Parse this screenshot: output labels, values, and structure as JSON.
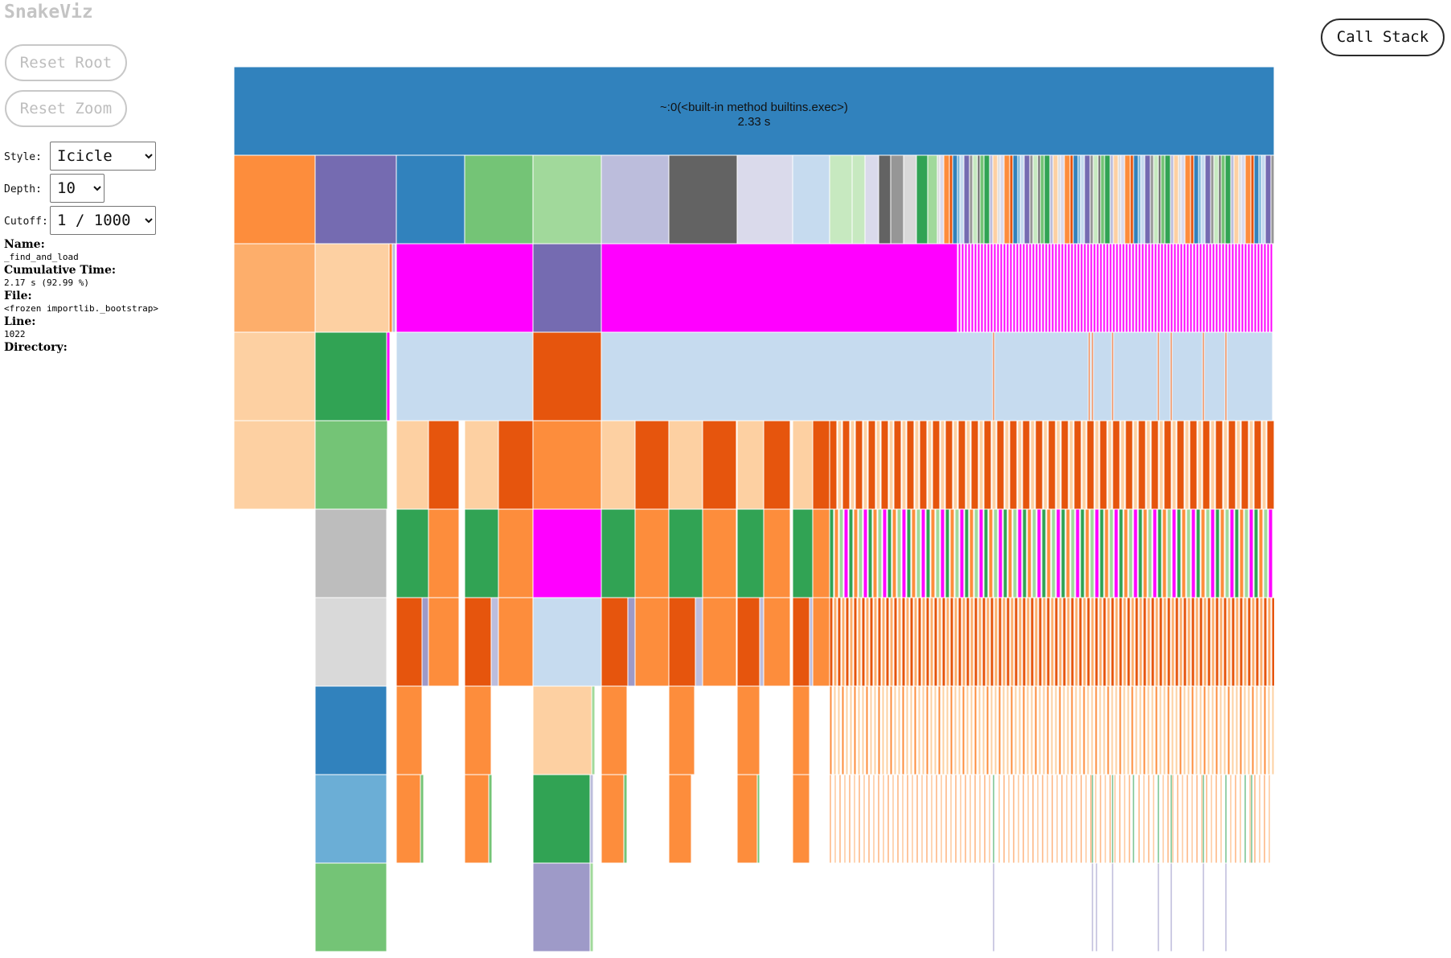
{
  "app": {
    "title": "SnakeViz"
  },
  "toolbar": {
    "reset_root_label": "Reset Root",
    "reset_zoom_label": "Reset Zoom",
    "call_stack_label": "Call Stack"
  },
  "controls": {
    "style_label": "Style:",
    "style_value": "Icicle",
    "depth_label": "Depth:",
    "depth_value": "10",
    "cutoff_label": "Cutoff:",
    "cutoff_value": "1 / 1000"
  },
  "info": {
    "name_label": "Name:",
    "name_value": "_find_and_load",
    "cumtime_label": "Cumulative Time:",
    "cumtime_value": "2.17 s (92.99 %)",
    "file_label": "File:",
    "file_value": "<frozen importlib._bootstrap>",
    "line_label": "Line:",
    "line_value": "1022",
    "directory_label": "Directory:",
    "directory_value": ""
  },
  "root_node": {
    "name": "~:0(<built-in method builtins.exec>)",
    "time": "2.33 s",
    "color": "#3182bd"
  },
  "palette": {
    "orange": "#fd8d3c",
    "lt_orange": "#fdae6b",
    "peach": "#fdd0a2",
    "dk_orange": "#e6550d",
    "purple": "#756bb1",
    "lt_purple": "#bcbddc",
    "pale_purple": "#dadaeb",
    "mid_purple": "#9e9ac8",
    "blue": "#3182bd",
    "mid_blue": "#6baed6",
    "lt_blue": "#c6dbef",
    "green": "#31a354",
    "mid_green": "#74c476",
    "lt_green": "#a1d99b",
    "pale_green": "#c7e9c0",
    "dk_gray": "#636363",
    "mid_gray": "#969696",
    "gray": "#bdbdbd",
    "lt_gray": "#d9d9d9",
    "magenta": "#ff00ff"
  }
}
